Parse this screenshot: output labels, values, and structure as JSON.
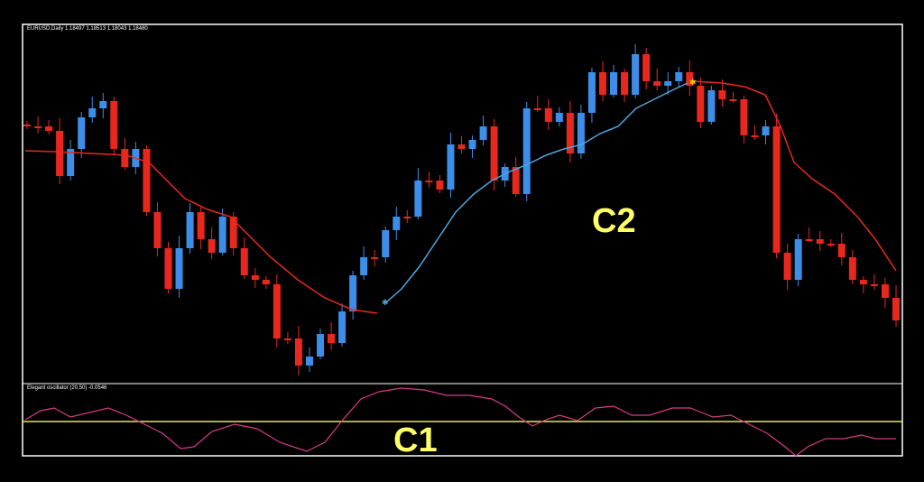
{
  "header": {
    "symbol_info": "EURUSD,Daily  1.18497 1.18513 1.18043 1.18480"
  },
  "indicator": {
    "label": "Elegant oscillator (20,50) -0.0546"
  },
  "annotations": {
    "upper": "C2",
    "lower": "C1"
  }
}
